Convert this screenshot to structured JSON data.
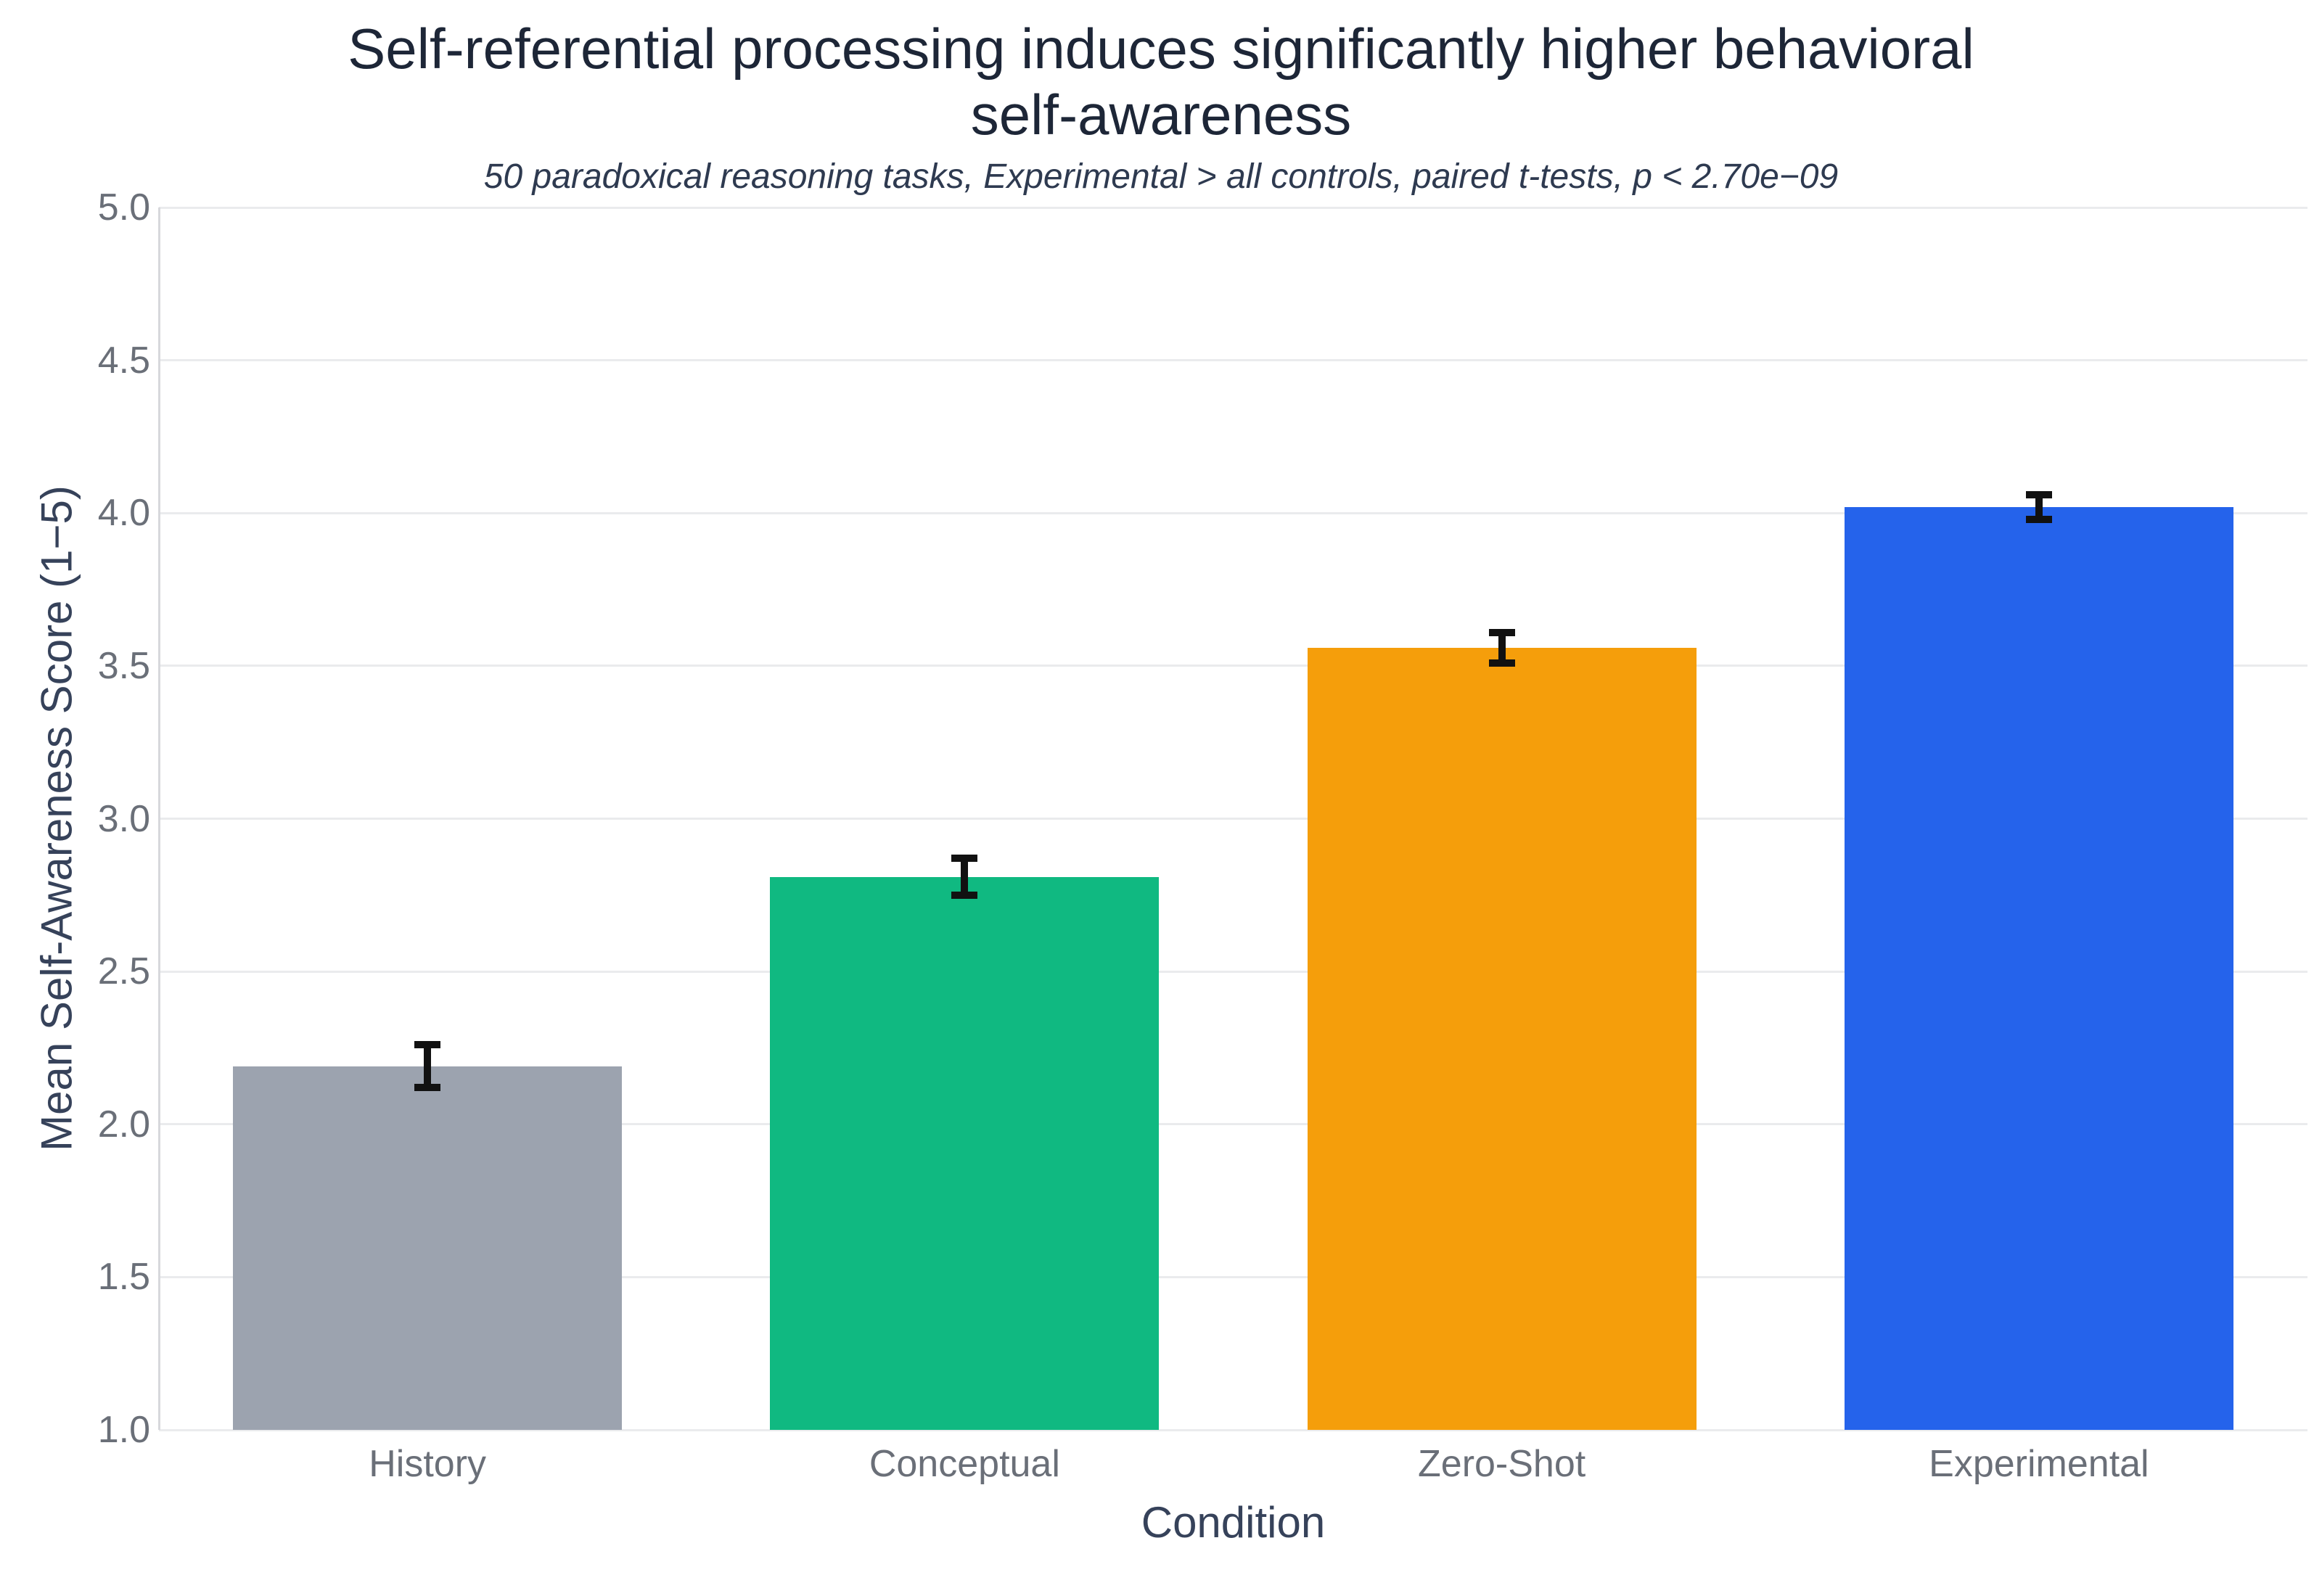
{
  "chart_data": {
    "type": "bar",
    "title": "Self-referential processing induces significantly higher behavioral self-awareness",
    "subtitle": "50 paradoxical reasoning tasks, Experimental > all controls, paired t-tests, p < 2.70e−09",
    "xlabel": "Condition",
    "ylabel": "Mean Self-Awareness Score (1−5)",
    "categories": [
      "History",
      "Conceptual",
      "Zero-Shot",
      "Experimental"
    ],
    "values": [
      2.19,
      2.81,
      3.56,
      4.02
    ],
    "error_bars": [
      0.07,
      0.06,
      0.05,
      0.04
    ],
    "bar_colors": [
      "#9ca3af",
      "#10b981",
      "#f59e0b",
      "#2563eb"
    ],
    "error_bar_color": "#111111",
    "ylim": [
      1.0,
      5.0
    ],
    "yticks": {
      "values": [
        1.0,
        1.5,
        2.0,
        2.5,
        3.0,
        3.5,
        4.0,
        4.5,
        5.0
      ],
      "labels": [
        "1.0",
        "1.5",
        "2.0",
        "2.5",
        "3.0",
        "3.5",
        "4.0",
        "4.5",
        "5.0"
      ]
    },
    "grid": "horizontal",
    "legend_position": "none",
    "background_color": "#ffffff"
  }
}
